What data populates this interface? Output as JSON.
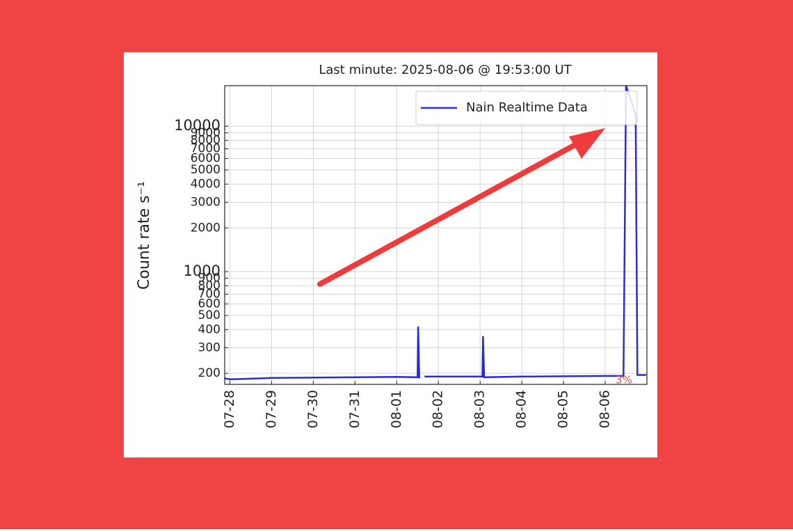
{
  "chart_data": {
    "type": "line",
    "title": "Last minute: 2025-08-06 @ 19:53:00  UT",
    "y_label": "Count rate s⁻¹",
    "annotation": "3%",
    "log_y": true,
    "grid": true,
    "legend": "upper right",
    "x": [
      "07-27 21:00",
      "07-28 00:00",
      "07-29 00:00",
      "07-30 00:00",
      "07-31 00:00",
      "08-01 00:00",
      "08-01 12:00",
      "08-01 12:20",
      "08-01 13:00",
      "08-01 14:00",
      "08-01 16:00",
      "08-02 12:00",
      "08-03 01:20",
      "08-03 01:40",
      "08-03 02:20",
      "08-04 00:00",
      "08-05 00:00",
      "08-06 00:00",
      "08-06 10:30",
      "08-06 12:00",
      "08-06 17:30",
      "08-06 18:30",
      "08-06 23:30"
    ],
    "series": [
      {
        "name": "Nain Realtime Data",
        "color": "#2b2bd0",
        "values": [
          185,
          182,
          186,
          187,
          188,
          189,
          188,
          420,
          185,
          null,
          190,
          190,
          190,
          360,
          188,
          190,
          191,
          192,
          192,
          19000,
          12000,
          195,
          195
        ]
      }
    ],
    "xlim": [
      "07-27 21:00",
      "08-07 00:00"
    ],
    "xticks": [
      "07-28",
      "07-29",
      "07-30",
      "07-31",
      "08-01",
      "08-02",
      "08-03",
      "08-04",
      "08-05",
      "08-06"
    ],
    "ylim": [
      168,
      19000
    ],
    "yticks": [
      200,
      300,
      400,
      500,
      600,
      700,
      800,
      900,
      1000,
      2000,
      3000,
      4000,
      5000,
      6000,
      7000,
      8000,
      9000,
      10000
    ]
  }
}
